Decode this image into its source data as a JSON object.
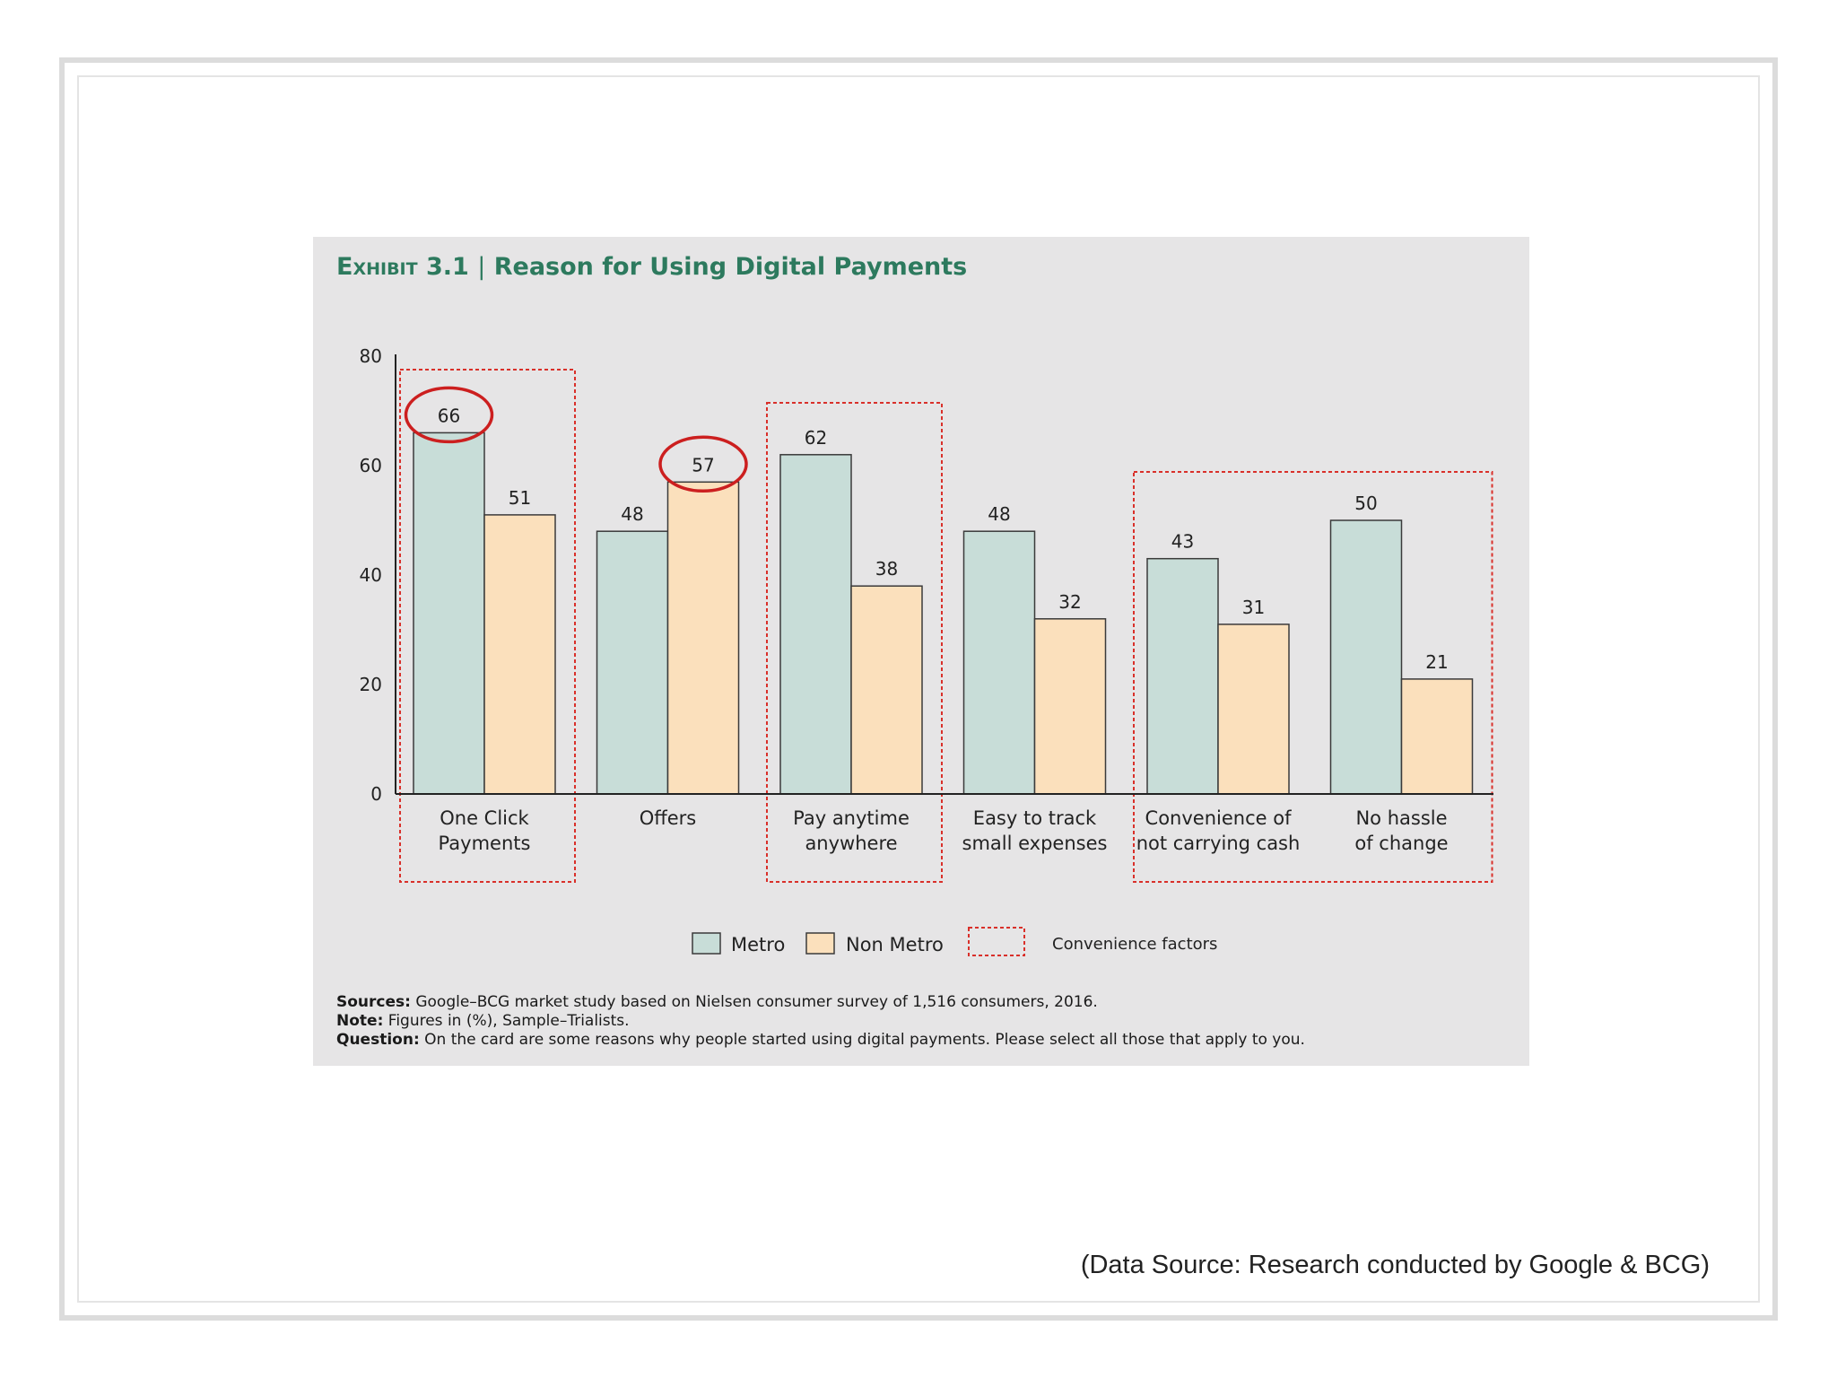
{
  "exhibit": {
    "label": "Exhibit 3.1",
    "separator": "|",
    "title": "Reason for Using Digital Payments"
  },
  "colors": {
    "metro": "#c8ddd8",
    "non_metro": "#fbe0bc",
    "highlight_box": "#d9302a",
    "title": "#2d7a5e",
    "circle": "#cc1f1f"
  },
  "chart_data": {
    "type": "bar",
    "title": "Reason for Using Digital Payments",
    "categories": [
      [
        "One Click",
        "Payments"
      ],
      [
        "Offers"
      ],
      [
        "Pay anytime",
        "anywhere"
      ],
      [
        "Easy to track",
        "small expenses"
      ],
      [
        "Convenience of",
        "not carrying cash"
      ],
      [
        "No hassle",
        "of change"
      ]
    ],
    "series": [
      {
        "name": "Metro",
        "values": [
          66,
          48,
          62,
          48,
          43,
          50
        ]
      },
      {
        "name": "Non Metro",
        "values": [
          51,
          57,
          38,
          32,
          31,
          21
        ]
      }
    ],
    "ylim": [
      0,
      80
    ],
    "yticks": [
      0,
      20,
      40,
      60,
      80
    ],
    "grid": false,
    "legend_position": "bottom",
    "convenience_factor_groups": [
      [
        0,
        0
      ],
      [
        2,
        2
      ],
      [
        4,
        5
      ]
    ],
    "circled_values": [
      {
        "category_index": 0,
        "series_index": 0
      },
      {
        "category_index": 1,
        "series_index": 1
      }
    ],
    "legend": {
      "metro": "Metro",
      "non_metro": "Non Metro",
      "convenience": "Convenience factors"
    }
  },
  "notes": {
    "sources_label": "Sources:",
    "sources_text": " Google–BCG market study based on Nielsen consumer survey of 1,516 consumers, 2016.",
    "note_label": "Note:",
    "note_text": " Figures in (%), Sample–Trialists.",
    "question_label": "Question:",
    "question_text": " On the card are some reasons why people started using digital payments. Please select all those that apply to you."
  },
  "data_source": "(Data Source: Research conducted by Google & BCG)"
}
